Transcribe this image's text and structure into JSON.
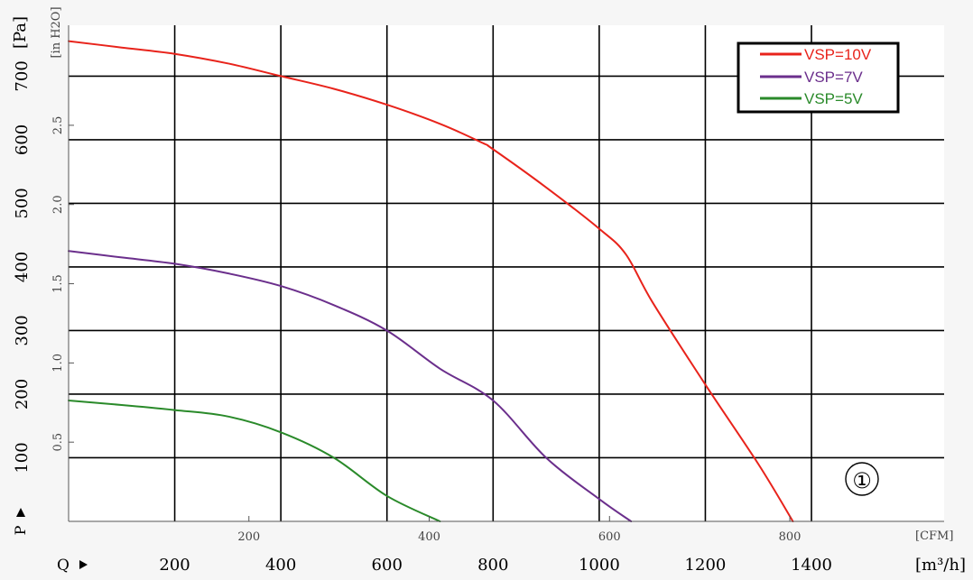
{
  "chart_data": {
    "type": "line",
    "title": "",
    "y_left_unit": "[Pa]",
    "y_left_symbol": "P",
    "y_inner_unit": "[in H2O]",
    "x_bottom_unit": "[m³/h]",
    "x_bottom_symbol": "Q",
    "x_inner_unit": "[CFM]",
    "x_range_m3h": [
      0,
      1650
    ],
    "y_range_pa": [
      0,
      780
    ],
    "pa_ticks": [
      "100",
      "200",
      "300",
      "400",
      "500",
      "600",
      "700"
    ],
    "pa_tick_values": [
      100,
      200,
      300,
      400,
      500,
      600,
      700
    ],
    "m3h_ticks": [
      "200",
      "400",
      "600",
      "800",
      "1000",
      "1200",
      "1400"
    ],
    "m3h_tick_values": [
      200,
      400,
      600,
      800,
      1000,
      1200,
      1400
    ],
    "cfm_ticks": [
      "200",
      "400",
      "600",
      "800"
    ],
    "cfm_tick_values": [
      200,
      400,
      600,
      800
    ],
    "inh2o_ticks": [
      "0.5",
      "1.0",
      "1.5",
      "2.0",
      "2.5"
    ],
    "inh2o_tick_values": [
      0.5,
      1.0,
      1.5,
      2.0,
      2.5
    ],
    "legend_position": "top-right",
    "curve_marker": "①",
    "series": [
      {
        "name": "VSP=10V",
        "color": "#e8231b",
        "x": [
          0,
          100,
          200,
          300,
          400,
          500,
          600,
          700,
          780,
          800,
          900,
          1000,
          1050,
          1100,
          1200,
          1300,
          1365
        ],
        "y": [
          755,
          745,
          735,
          720,
          700,
          680,
          655,
          625,
          595,
          585,
          525,
          460,
          420,
          345,
          215,
          90,
          0
        ]
      },
      {
        "name": "VSP=7V",
        "color": "#6b2f8c",
        "x": [
          0,
          100,
          200,
          300,
          400,
          500,
          600,
          700,
          800,
          900,
          1000,
          1060
        ],
        "y": [
          425,
          415,
          405,
          390,
          370,
          340,
          300,
          240,
          190,
          100,
          35,
          0
        ]
      },
      {
        "name": "VSP=5V",
        "color": "#2a8a2a",
        "x": [
          0,
          100,
          200,
          300,
          400,
          500,
          600,
          700
        ],
        "y": [
          190,
          183,
          175,
          165,
          140,
          100,
          40,
          0
        ]
      }
    ]
  }
}
